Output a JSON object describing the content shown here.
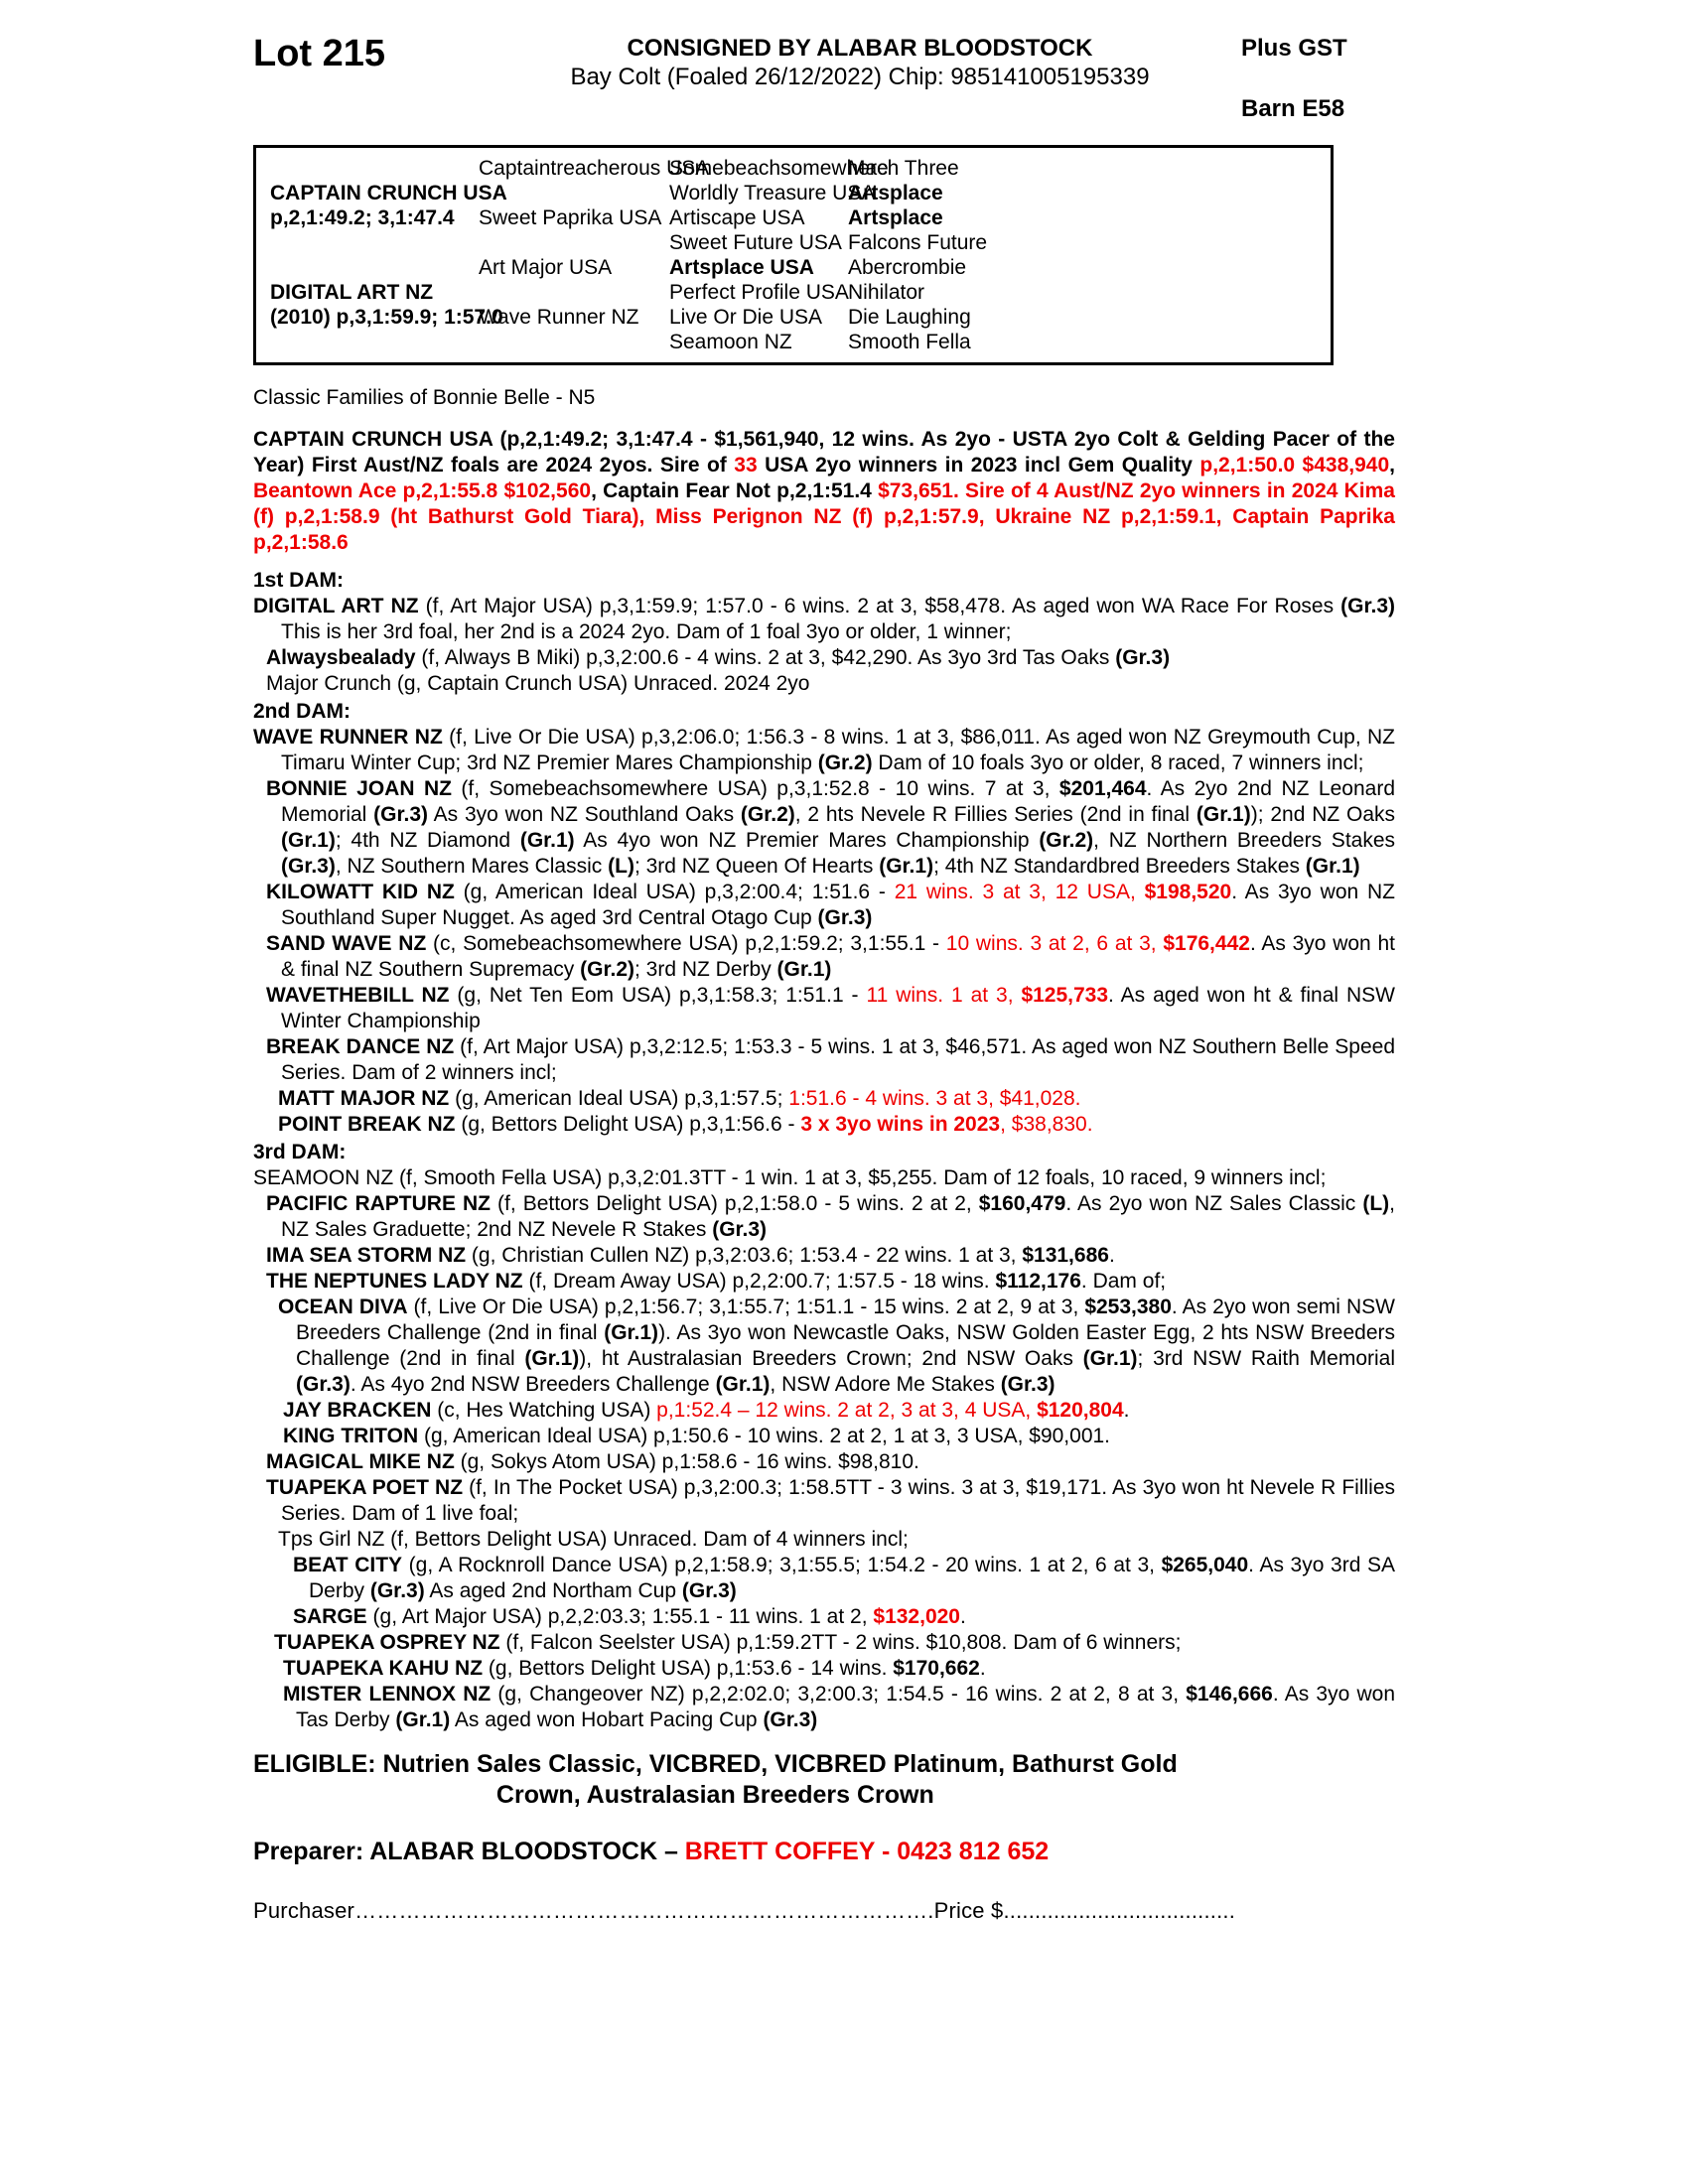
{
  "header": {
    "lot": "Lot 215",
    "consigned": "CONSIGNED BY ALABAR BLOODSTOCK",
    "foaling": "Bay Colt (Foaled  26/12/2022) Chip: 985141005195339",
    "plus_gst": "Plus GST",
    "barn": "Barn E58"
  },
  "colors": {
    "red": "#ee0000",
    "ink": "#000000"
  },
  "pedigree": {
    "rows": [
      [
        null,
        {
          "t": "Captaintreacherous USA"
        },
        {
          "t": "Somebeachsomewhere"
        },
        {
          "t": "Mach Three"
        }
      ],
      [
        {
          "t": "CAPTAIN CRUNCH USA",
          "b": 1
        },
        null,
        {
          "t": "Worldly Treasure USA"
        },
        {
          "t": "Artsplace",
          "b": 1
        }
      ],
      [
        {
          "t": "p,2,1:49.2; 3,1:47.4",
          "b": 1
        },
        {
          "t": "Sweet Paprika USA"
        },
        {
          "t": "Artiscape USA"
        },
        {
          "t": "Artsplace",
          "b": 1
        }
      ],
      [
        null,
        null,
        {
          "t": "Sweet Future USA"
        },
        {
          "t": "Falcons Future"
        }
      ],
      [
        null,
        {
          "t": "Art Major USA"
        },
        {
          "t": "Artsplace USA",
          "b": 1
        },
        {
          "t": "Abercrombie"
        }
      ],
      [
        {
          "t": "DIGITAL ART NZ",
          "b": 1
        },
        null,
        {
          "t": "Perfect Profile USA"
        },
        {
          "t": "Nihilator"
        }
      ],
      [
        {
          "t": "(2010) p,3,1:59.9; 1:57.0",
          "b": 1
        },
        {
          "t": "Wave Runner NZ"
        },
        {
          "t": "Live Or Die USA"
        },
        {
          "t": "Die Laughing"
        }
      ],
      [
        null,
        null,
        {
          "t": "Seamoon NZ"
        },
        {
          "t": "Smooth Fella"
        }
      ]
    ]
  },
  "family_note": "Classic Families of Bonnie Belle - N5",
  "paras": [
    {
      "seg": [
        {
          "t": "CAPTAIN CRUNCH USA (p,2,1:49.2; 3,1:47.4 - $1,561,940, 12 wins. As 2yo - USTA 2yo Colt & Gelding Pacer of the Year) First Aust/NZ foals are 2024 2yos. Sire of "
        },
        {
          "t": "33",
          "r": 1
        },
        {
          "t": " USA 2yo winners in 2023 incl Gem Quality "
        },
        {
          "t": "p,2,1:50.0 $438,940",
          "r": 1
        },
        {
          "t": ", "
        },
        {
          "t": "Beantown Ace p,2,1:55.8 $102,560",
          "r": 1
        },
        {
          "t": ", Captain Fear Not p,2,1:51.4 "
        },
        {
          "t": "$73,651. Sire of 4 Aust/NZ 2yo winners in 2024 Kima (f) p,2,1:58.9 (ht Bathurst Gold Tiara), Miss Perignon NZ (f) p,2,1:57.9, Ukraine NZ p,2,1:59.1, Captain Paprika p,2,1:58.6",
          "r": 1
        }
      ]
    },
    {
      "seg": [
        {
          "t": "1st DAM:"
        }
      ]
    },
    {
      "seg": [
        {
          "t": "DIGITAL ART NZ",
          "b": 1
        },
        {
          "t": " (f, Art Major USA) p,3,1:59.9; 1:57.0 - 6 wins. 2 at 3, $58,478. As aged won WA Race For Roses "
        },
        {
          "t": "(Gr.3)",
          "b": 1
        },
        {
          "t": " This is her 3rd foal, her 2nd is a 2024 2yo. Dam of 1 foal 3yo or older, 1 winner;"
        }
      ]
    },
    {
      "seg": [
        {
          "t": "Alwaysbealady",
          "b": 1
        },
        {
          "t": " (f, Always B Miki) p,3,2:00.6 - 4 wins. 2 at 3, $42,290. As 3yo 3rd Tas Oaks "
        },
        {
          "t": "(Gr.3)",
          "b": 1
        }
      ]
    },
    {
      "seg": [
        {
          "t": "Major Crunch (g, Captain Crunch USA) Unraced. 2024 2yo"
        }
      ]
    },
    {
      "seg": [
        {
          "t": "2nd DAM:"
        }
      ]
    },
    {
      "seg": [
        {
          "t": "WAVE RUNNER NZ",
          "b": 1
        },
        {
          "t": " (f, Live Or Die USA) p,3,2:06.0; 1:56.3 - 8 wins. 1 at 3, $86,011. As aged won NZ Greymouth Cup, NZ Timaru Winter Cup; 3rd NZ Premier Mares Championship "
        },
        {
          "t": "(Gr.2)",
          "b": 1
        },
        {
          "t": " Dam of 10 foals 3yo or older, 8 raced, 7 winners incl;"
        }
      ]
    },
    {
      "seg": [
        {
          "t": "BONNIE JOAN NZ",
          "b": 1
        },
        {
          "t": " (f, Somebeachsomewhere USA) p,3,1:52.8 - 10 wins. 7 at 3, "
        },
        {
          "t": "$201,464",
          "b": 1
        },
        {
          "t": ". As 2yo 2nd NZ Leonard Memorial "
        },
        {
          "t": "(Gr.3)",
          "b": 1
        },
        {
          "t": " As 3yo won NZ Southland Oaks "
        },
        {
          "t": "(Gr.2)",
          "b": 1
        },
        {
          "t": ", 2 hts Nevele R Fillies Series (2nd in final "
        },
        {
          "t": "(Gr.1)",
          "b": 1
        },
        {
          "t": "); 2nd NZ Oaks "
        },
        {
          "t": "(Gr.1)",
          "b": 1
        },
        {
          "t": "; 4th NZ Diamond "
        },
        {
          "t": "(Gr.1)",
          "b": 1
        },
        {
          "t": " As 4yo won NZ Premier Mares Championship "
        },
        {
          "t": "(Gr.2)",
          "b": 1
        },
        {
          "t": ", NZ Northern Breeders Stakes "
        },
        {
          "t": "(Gr.3)",
          "b": 1
        },
        {
          "t": ", NZ Southern Mares Classic "
        },
        {
          "t": "(L)",
          "b": 1
        },
        {
          "t": "; 3rd NZ Queen Of Hearts "
        },
        {
          "t": "(Gr.1)",
          "b": 1
        },
        {
          "t": "; 4th NZ Standardbred Breeders Stakes "
        },
        {
          "t": "(Gr.1)",
          "b": 1
        }
      ]
    },
    {
      "seg": [
        {
          "t": "KILOWATT KID NZ",
          "b": 1
        },
        {
          "t": " (g, American Ideal USA) p,3,2:00.4; 1:51.6 - "
        },
        {
          "t": "21 wins. 3 at 3, 12 USA, ",
          "r": 1
        },
        {
          "t": "$198,520",
          "b": 1,
          "r": 1
        },
        {
          "t": ". As 3yo won NZ Southland Super Nugget. As aged 3rd Central Otago Cup "
        },
        {
          "t": "(Gr.3)",
          "b": 1
        }
      ]
    },
    {
      "seg": [
        {
          "t": "SAND WAVE NZ",
          "b": 1
        },
        {
          "t": " (c, Somebeachsomewhere USA) p,2,1:59.2; 3,1:55.1 - "
        },
        {
          "t": "10 wins. 3 at 2, 6 at 3, ",
          "r": 1
        },
        {
          "t": "$176,442",
          "b": 1,
          "r": 1
        },
        {
          "t": ". As 3yo won ht & final NZ Southern Supremacy "
        },
        {
          "t": "(Gr.2)",
          "b": 1
        },
        {
          "t": "; 3rd NZ Derby "
        },
        {
          "t": "(Gr.1)",
          "b": 1
        }
      ]
    },
    {
      "seg": [
        {
          "t": "WAVETHEBILL NZ",
          "b": 1
        },
        {
          "t": " (g, Net Ten Eom USA) p,3,1:58.3; 1:51.1 - "
        },
        {
          "t": "11 wins. 1 at 3, ",
          "r": 1
        },
        {
          "t": "$125,733",
          "b": 1,
          "r": 1
        },
        {
          "t": ". As aged won ht & final NSW Winter Championship"
        }
      ]
    },
    {
      "seg": [
        {
          "t": "BREAK DANCE NZ",
          "b": 1
        },
        {
          "t": " (f, Art Major USA) p,3,2:12.5; 1:53.3 - 5 wins. 1 at 3, $46,571. As aged won NZ Southern Belle Speed Series. Dam of 2 winners incl;"
        }
      ]
    },
    {
      "seg": [
        {
          "t": "MATT MAJOR NZ",
          "b": 1
        },
        {
          "t": " (g, American Ideal USA) p,3,1:57.5; "
        },
        {
          "t": "1:51.6 - 4 wins. 3 at 3, $41,028.",
          "r": 1
        }
      ]
    },
    {
      "seg": [
        {
          "t": "POINT BREAK NZ",
          "b": 1
        },
        {
          "t": " (g, Bettors Delight USA) p,3,1:56.6 - "
        },
        {
          "t": "3 x 3yo wins in 2023",
          "b": 1,
          "r": 1
        },
        {
          "t": ", $38,830.",
          "r": 1
        }
      ]
    },
    {
      "seg": [
        {
          "t": "3rd DAM:"
        }
      ]
    },
    {
      "seg": [
        {
          "t": "SEAMOON NZ (f, Smooth Fella USA) p,3,2:01.3TT - 1 win. 1 at 3, $5,255. Dam of 12 foals, 10 raced, 9 winners incl;"
        }
      ]
    },
    {
      "seg": [
        {
          "t": "PACIFIC RAPTURE NZ",
          "b": 1
        },
        {
          "t": " (f, Bettors Delight USA) p,2,1:58.0 - 5 wins. 2 at 2, "
        },
        {
          "t": "$160,479",
          "b": 1
        },
        {
          "t": ". As 2yo won NZ Sales Classic "
        },
        {
          "t": "(L)",
          "b": 1
        },
        {
          "t": ", NZ Sales Graduette; 2nd NZ Nevele R Stakes "
        },
        {
          "t": "(Gr.3)",
          "b": 1
        }
      ]
    },
    {
      "seg": [
        {
          "t": "IMA SEA STORM NZ",
          "b": 1
        },
        {
          "t": " (g, Christian Cullen NZ) p,3,2:03.6; 1:53.4 - 22 wins. 1 at 3, "
        },
        {
          "t": "$131,686",
          "b": 1
        },
        {
          "t": "."
        }
      ]
    },
    {
      "seg": [
        {
          "t": "THE NEPTUNES LADY NZ",
          "b": 1
        },
        {
          "t": " (f, Dream Away USA) p,2,2:00.7; 1:57.5 - 18 wins. "
        },
        {
          "t": "$112,176",
          "b": 1
        },
        {
          "t": ". Dam of;"
        }
      ]
    },
    {
      "seg": [
        {
          "t": "OCEAN DIVA",
          "b": 1
        },
        {
          "t": " (f, Live Or Die USA) p,2,1:56.7; 3,1:55.7; 1:51.1 - 15 wins. 2 at 2, 9 at 3, "
        },
        {
          "t": "$253,380",
          "b": 1
        },
        {
          "t": ". As 2yo won semi NSW Breeders Challenge (2nd in final "
        },
        {
          "t": "(Gr.1)",
          "b": 1
        },
        {
          "t": "). As 3yo won Newcastle Oaks, NSW Golden Easter Egg, 2 hts NSW Breeders Challenge (2nd in final "
        },
        {
          "t": "(Gr.1)",
          "b": 1
        },
        {
          "t": "), ht Australasian Breeders Crown; 2nd NSW Oaks "
        },
        {
          "t": "(Gr.1)",
          "b": 1
        },
        {
          "t": "; 3rd NSW Raith Memorial "
        },
        {
          "t": "(Gr.3)",
          "b": 1
        },
        {
          "t": ". As 4yo 2nd NSW Breeders Challenge "
        },
        {
          "t": "(Gr.1)",
          "b": 1
        },
        {
          "t": ", NSW Adore Me Stakes "
        },
        {
          "t": "(Gr.3)",
          "b": 1
        }
      ]
    },
    {
      "seg": [
        {
          "t": "JAY BRACKEN",
          "b": 1
        },
        {
          "t": " (c, Hes Watching USA) "
        },
        {
          "t": "p,1:52.4 – 12 wins. 2 at 2, 3 at 3, 4 USA, ",
          "r": 1
        },
        {
          "t": "$120,804",
          "b": 1,
          "r": 1
        },
        {
          "t": "."
        }
      ]
    },
    {
      "seg": [
        {
          "t": "KING TRITON",
          "b": 1
        },
        {
          "t": " (g, American Ideal USA) p,1:50.6 - 10 wins. 2 at 2, 1 at 3, 3 USA, $90,001."
        }
      ]
    },
    {
      "seg": [
        {
          "t": "MAGICAL MIKE NZ",
          "b": 1
        },
        {
          "t": " (g, Sokys Atom USA) p,1:58.6 - 16 wins. $98,810."
        }
      ]
    },
    {
      "seg": [
        {
          "t": "TUAPEKA POET NZ",
          "b": 1
        },
        {
          "t": " (f, In The Pocket USA) p,3,2:00.3; 1:58.5TT - 3 wins. 3 at 3, $19,171. As 3yo won ht Nevele R Fillies Series. Dam of 1 live foal;"
        }
      ]
    },
    {
      "seg": [
        {
          "t": "Tps Girl NZ (f, Bettors Delight USA) Unraced. Dam of 4 winners incl;"
        }
      ]
    },
    {
      "seg": [
        {
          "t": "BEAT CITY",
          "b": 1
        },
        {
          "t": " (g, A Rocknroll Dance USA) p,2,1:58.9; 3,1:55.5; 1:54.2 - 20 wins. 1 at 2, 6 at 3, "
        },
        {
          "t": "$265,040",
          "b": 1
        },
        {
          "t": ". As 3yo 3rd SA Derby "
        },
        {
          "t": "(Gr.3)",
          "b": 1
        },
        {
          "t": " As aged 2nd Northam Cup "
        },
        {
          "t": "(Gr.3)",
          "b": 1
        }
      ]
    },
    {
      "seg": [
        {
          "t": "SARGE",
          "b": 1
        },
        {
          "t": " (g, Art Major USA) p,2,2:03.3; 1:55.1 - 11 wins. 1 at 2, "
        },
        {
          "t": "$132,020",
          "b": 1,
          "r": 1
        },
        {
          "t": "."
        }
      ]
    },
    {
      "seg": [
        {
          "t": "TUAPEKA OSPREY NZ",
          "b": 1
        },
        {
          "t": " (f, Falcon Seelster USA) p,1:59.2TT - 2 wins. $10,808. Dam of 6 winners;"
        }
      ]
    },
    {
      "seg": [
        {
          "t": "TUAPEKA KAHU NZ",
          "b": 1
        },
        {
          "t": " (g, Bettors Delight USA) p,1:53.6 - 14 wins. "
        },
        {
          "t": "$170,662",
          "b": 1
        },
        {
          "t": "."
        }
      ]
    },
    {
      "seg": [
        {
          "t": "MISTER LENNOX NZ",
          "b": 1
        },
        {
          "t": " (g, Changeover NZ) p,2,2:02.0; 3,2:00.3; 1:54.5 - 16 wins. 2 at 2, 8 at 3, "
        },
        {
          "t": "$146,666",
          "b": 1
        },
        {
          "t": ". As 3yo won Tas Derby "
        },
        {
          "t": "(Gr.1)",
          "b": 1
        },
        {
          "t": " As aged won Hobart Pacing Cup "
        },
        {
          "t": "(Gr.3)",
          "b": 1
        }
      ]
    }
  ],
  "eligible": {
    "line1": "ELIGIBLE: Nutrien Sales Classic, VICBRED, VICBRED Platinum, Bathurst Gold",
    "line2": "Crown, Australasian Breeders Crown"
  },
  "preparer": {
    "seg": [
      {
        "t": "Preparer: ALABAR BLOODSTOCK – "
      },
      {
        "t": "BRETT COFFEY - 0423 812 652",
        "r": 1
      }
    ]
  },
  "purchaser_line": "Purchaser…………………………………………………………………….Price $....................................."
}
